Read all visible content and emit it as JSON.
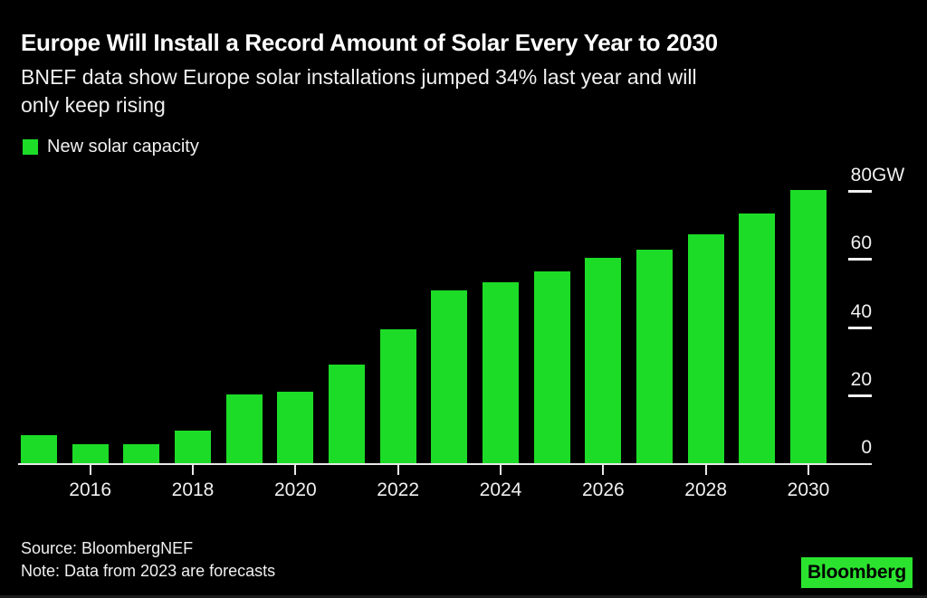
{
  "header": {
    "title": "Europe Will Install a Record Amount of Solar Every Year to 2030",
    "subtitle_lines": [
      "BNEF data show Europe solar installations jumped 34% last year and will",
      "only keep rising"
    ]
  },
  "legend": {
    "label": "New solar capacity"
  },
  "chart_data": {
    "type": "bar",
    "title": "Europe Will Install a Record Amount of Solar Every Year to 2030",
    "series": [
      {
        "name": "New solar capacity",
        "values": [
          8.5,
          5.9,
          5.9,
          9.9,
          20.5,
          21.2,
          29.3,
          39.5,
          51,
          53.5,
          56.5,
          60.5,
          63,
          67.5,
          73.5,
          80.5
        ]
      }
    ],
    "x": [
      2015,
      2016,
      2017,
      2018,
      2019,
      2020,
      2021,
      2022,
      2023,
      2024,
      2025,
      2026,
      2027,
      2028,
      2029,
      2030
    ],
    "unit": "GW",
    "ylabel": "",
    "xlabel": "",
    "ylim": [
      0,
      80
    ],
    "y_ticks": [
      0,
      20,
      40,
      60,
      80
    ],
    "y_top_tick_label": "80GW",
    "x_tick_labels": [
      "2016",
      "2018",
      "2020",
      "2022",
      "2024",
      "2026",
      "2028",
      "2030"
    ],
    "grid": "off",
    "legend_position": "top-left"
  },
  "footer": {
    "source": "Source: BloombergNEF",
    "note": "Note: Data from 2023 are forecasts",
    "logo_text": "Bloomberg"
  },
  "colors": {
    "background": "#000000",
    "bar_green": "#1cdc27",
    "logo_green": "#2be32f",
    "title_text": "#ffffff",
    "body_text": "#f0f0f0",
    "axis": "#e8e8e8"
  }
}
